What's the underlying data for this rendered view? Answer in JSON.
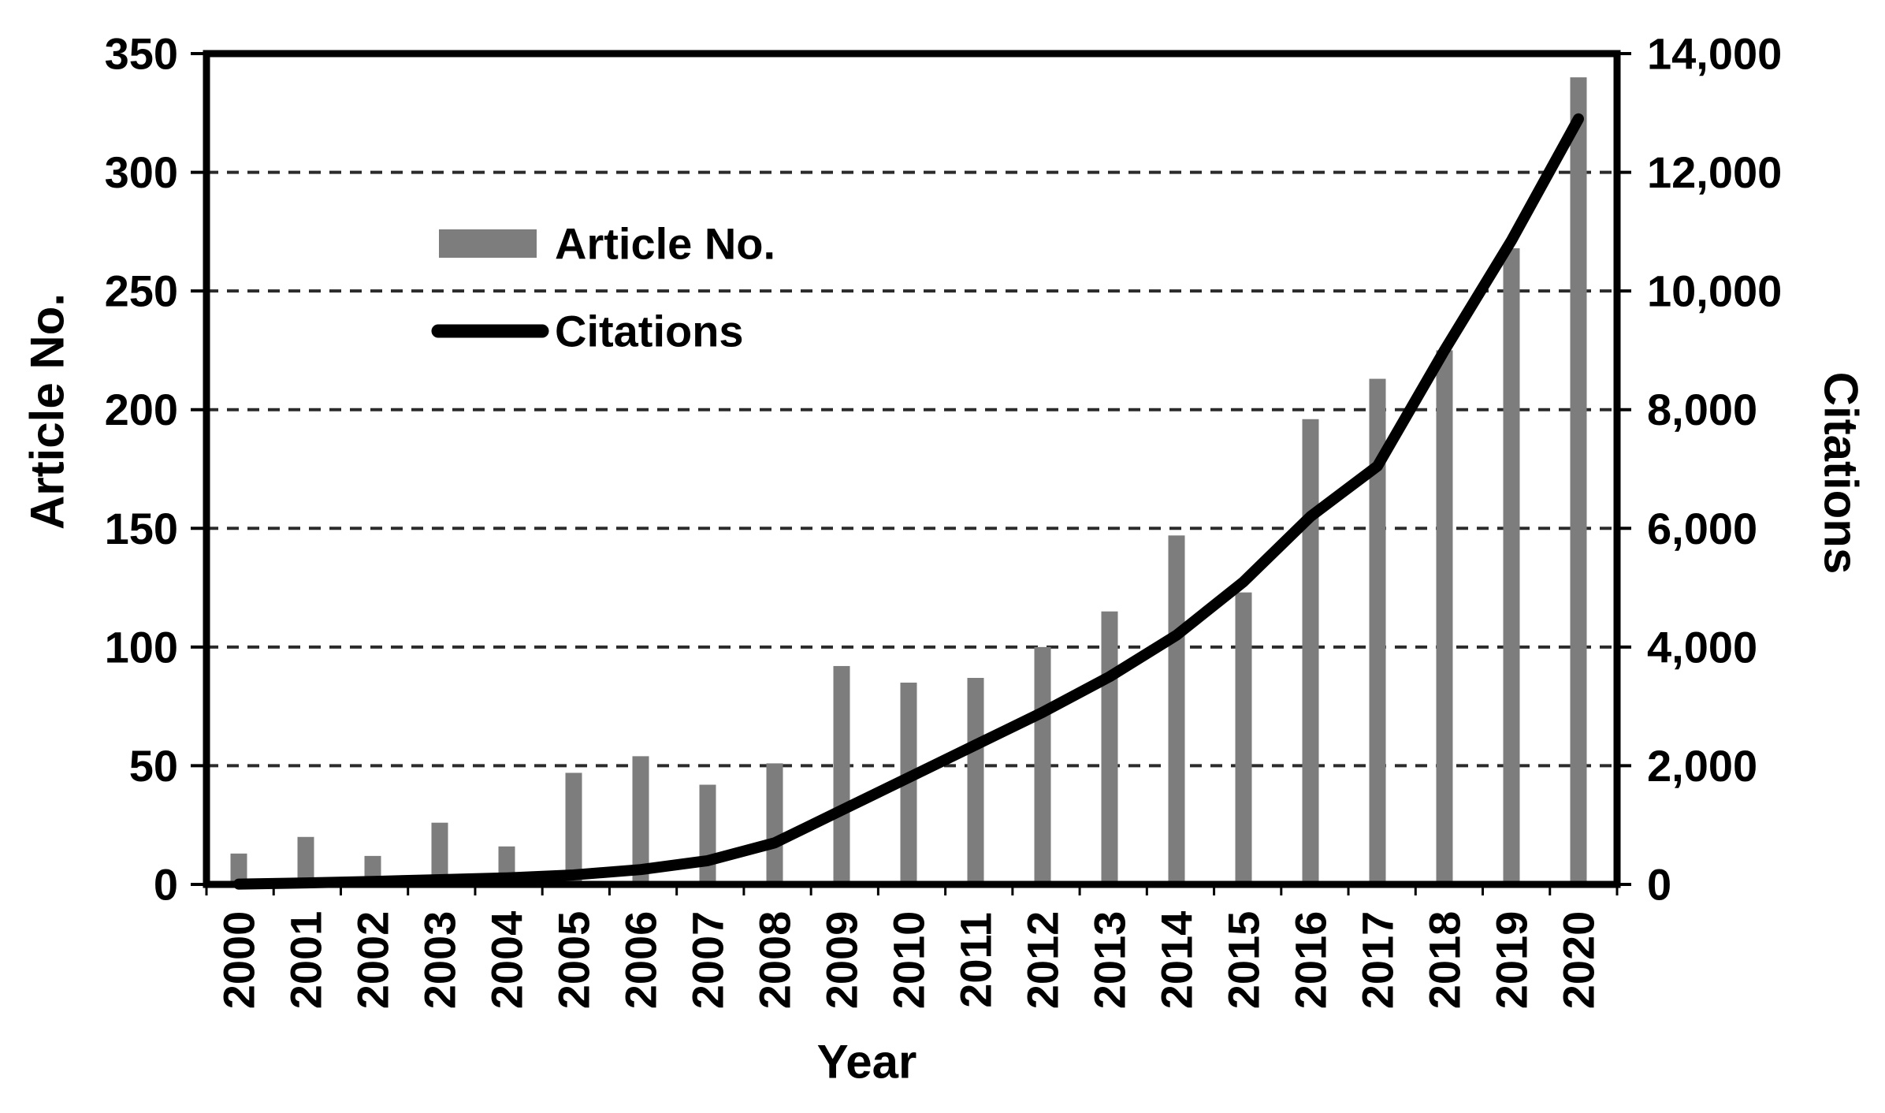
{
  "chart_data": {
    "type": "bar",
    "subtype": "combo-bar-line-dual-axis",
    "title": "",
    "categories": [
      "2000",
      "2001",
      "2002",
      "2003",
      "2004",
      "2005",
      "2006",
      "2007",
      "2008",
      "2009",
      "2010",
      "2011",
      "2012",
      "2013",
      "2014",
      "2015",
      "2016",
      "2017",
      "2018",
      "2019",
      "2020"
    ],
    "series": [
      {
        "name": "Article No.",
        "type": "bar",
        "axis": "left",
        "color": "#7d7d7d",
        "values": [
          13,
          20,
          12,
          26,
          16,
          47,
          54,
          42,
          51,
          92,
          85,
          87,
          100,
          115,
          147,
          123,
          196,
          213,
          225,
          268,
          340
        ]
      },
      {
        "name": "Citations",
        "type": "line",
        "axis": "right",
        "color": "#000000",
        "values": [
          5,
          25,
          50,
          80,
          110,
          160,
          250,
          400,
          700,
          1250,
          1800,
          2350,
          2900,
          3500,
          4200,
          5100,
          6200,
          7050,
          9000,
          10850,
          12900
        ]
      }
    ],
    "x_axis": {
      "label": "Year"
    },
    "y_axis_left": {
      "label": "Article No.",
      "min": 0,
      "max": 350,
      "ticks": [
        0,
        50,
        100,
        150,
        200,
        250,
        300,
        350
      ]
    },
    "y_axis_right": {
      "label": "Citations",
      "min": 0,
      "max": 14000,
      "tick_labels": [
        "0",
        "2,000",
        "4,000",
        "6,000",
        "8,000",
        "10,000",
        "12,000",
        "14,000"
      ],
      "tick_values": [
        0,
        2000,
        4000,
        6000,
        8000,
        10000,
        12000,
        14000
      ]
    },
    "grid": {
      "style": "dashed-horizontal",
      "color": "#2b2b2b"
    },
    "legend": {
      "position": "upper-left-inside",
      "items": [
        {
          "label": "Article No.",
          "swatch": "bar",
          "color": "#7d7d7d"
        },
        {
          "label": "Citations",
          "swatch": "line",
          "color": "#000000"
        }
      ]
    },
    "colors": {
      "frame": "#000000",
      "background": "#ffffff",
      "text": "#000000"
    }
  }
}
